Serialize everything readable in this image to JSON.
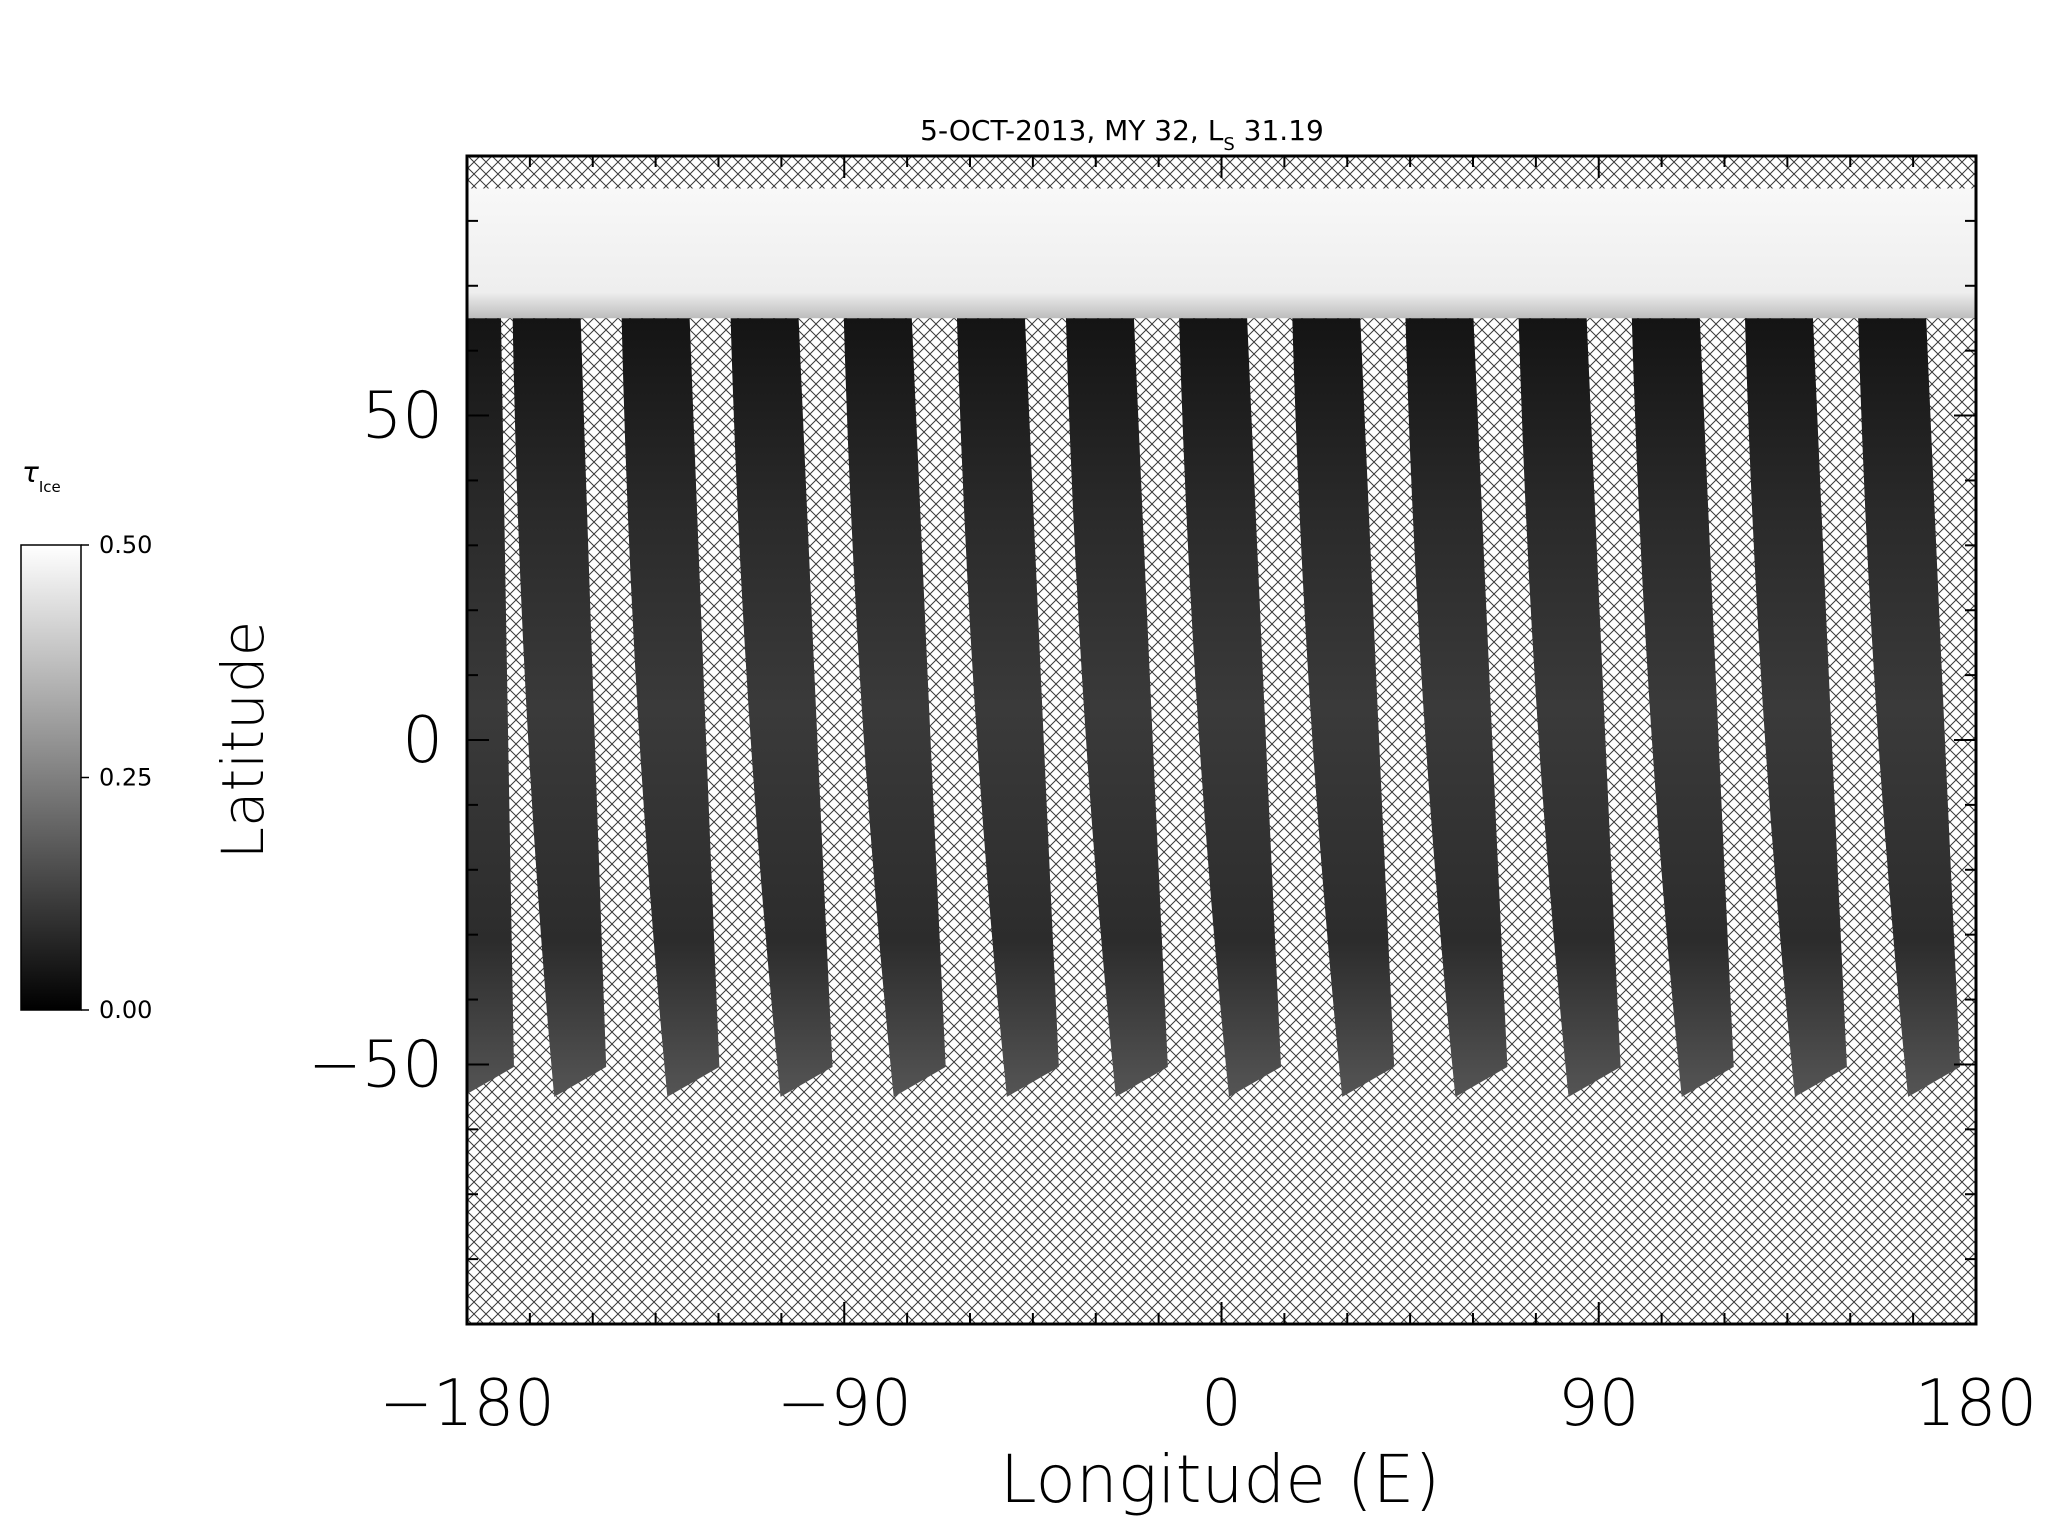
{
  "chart_data": {
    "type": "heatmap",
    "title": {
      "prefix": "5-OCT-2013, MY 32,  L",
      "subscript": "S",
      "suffix": " 31.19"
    },
    "xlabel": "Longitude (E)",
    "ylabel": "Latitude",
    "xlim": [
      -180,
      180
    ],
    "ylim": [
      -90,
      90
    ],
    "xticks": [
      -180,
      -90,
      0,
      90,
      180
    ],
    "xtick_labels": [
      "−180",
      "−90",
      "0",
      "90",
      "180"
    ],
    "yticks": [
      -50,
      0,
      50
    ],
    "ytick_labels": [
      "−50",
      "0",
      "50"
    ],
    "colorbar": {
      "label": "τ",
      "label_subscript": "Ice",
      "min": 0.0,
      "max": 0.5,
      "tick_values": [
        0.0,
        0.25,
        0.5
      ],
      "tick_labels": [
        "0.00",
        "0.25",
        "0.50"
      ],
      "colormap": "grayscale"
    },
    "no_data_pattern": "crosshatch",
    "grid": false,
    "polar_cap": {
      "lat_min": 65,
      "lat_max": 85,
      "approx_tau_ice": 0.5
    },
    "swaths": [
      {
        "lon_bottom": -175,
        "lon_top": -180,
        "lat_min": -55,
        "lat_max": 65
      },
      {
        "lon_bottom": -153,
        "lon_top": -161,
        "lat_min": -55,
        "lat_max": 65
      },
      {
        "lon_bottom": -126,
        "lon_top": -135,
        "lat_min": -55,
        "lat_max": 65
      },
      {
        "lon_bottom": -99,
        "lon_top": -109,
        "lat_min": -55,
        "lat_max": 65
      },
      {
        "lon_bottom": -72,
        "lon_top": -82,
        "lat_min": -55,
        "lat_max": 65
      },
      {
        "lon_bottom": -45,
        "lon_top": -55,
        "lat_min": -55,
        "lat_max": 65
      },
      {
        "lon_bottom": -19,
        "lon_top": -29,
        "lat_min": -55,
        "lat_max": 65
      },
      {
        "lon_bottom": 8,
        "lon_top": -2,
        "lat_min": -55,
        "lat_max": 65
      },
      {
        "lon_bottom": 35,
        "lon_top": 25,
        "lat_min": -55,
        "lat_max": 65
      },
      {
        "lon_bottom": 62,
        "lon_top": 52,
        "lat_min": -55,
        "lat_max": 65
      },
      {
        "lon_bottom": 89,
        "lon_top": 79,
        "lat_min": -55,
        "lat_max": 65
      },
      {
        "lon_bottom": 116,
        "lon_top": 106,
        "lat_min": -55,
        "lat_max": 65
      },
      {
        "lon_bottom": 143,
        "lon_top": 133,
        "lat_min": -55,
        "lat_max": 65
      },
      {
        "lon_bottom": 170,
        "lon_top": 160,
        "lat_min": -55,
        "lat_max": 65
      }
    ]
  }
}
